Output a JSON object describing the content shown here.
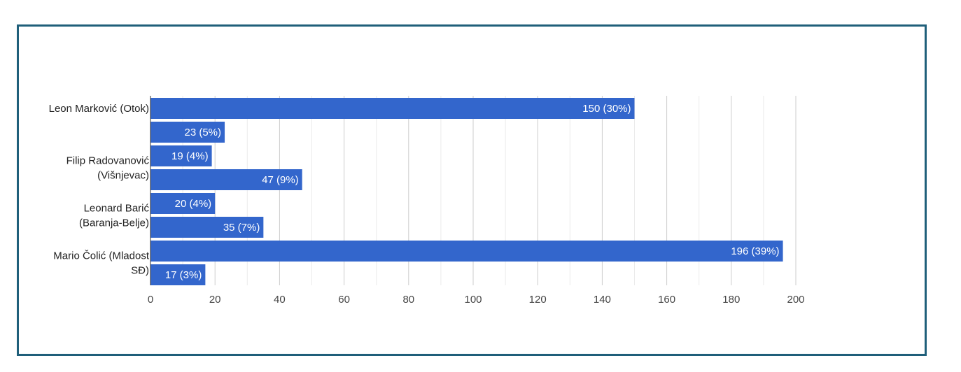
{
  "chart_data": {
    "type": "bar",
    "orientation": "horizontal",
    "title": "",
    "xlabel": "",
    "ylabel": "",
    "bar_color": "#3366cc",
    "frame_color": "#1f5f7a",
    "grid": true,
    "xlim": [
      0,
      200
    ],
    "xticks": [
      "0",
      "20",
      "40",
      "60",
      "80",
      "100",
      "120",
      "140",
      "160",
      "180",
      "200"
    ],
    "category_labels": [
      {
        "lines": [
          "Leon Marković (Otok)"
        ],
        "bar_index": 0
      },
      {
        "lines": [
          "Filip Radovanović",
          "(Višnjevac)"
        ],
        "bar_index": 2
      },
      {
        "lines": [
          "Leonard Barić",
          "(Baranja-Belje)"
        ],
        "bar_index": 4
      },
      {
        "lines": [
          "Mario Čolić (Mladost",
          "SĐ)"
        ],
        "bar_index": 6
      }
    ],
    "bars": [
      {
        "value": 150,
        "label": "150 (30%)"
      },
      {
        "value": 23,
        "label": "23 (5%)"
      },
      {
        "value": 19,
        "label": "19 (4%)"
      },
      {
        "value": 47,
        "label": "47 (9%)"
      },
      {
        "value": 20,
        "label": "20 (4%)"
      },
      {
        "value": 35,
        "label": "35 (7%)"
      },
      {
        "value": 196,
        "label": "196 (39%)"
      },
      {
        "value": 17,
        "label": "17 (3%)"
      }
    ]
  }
}
